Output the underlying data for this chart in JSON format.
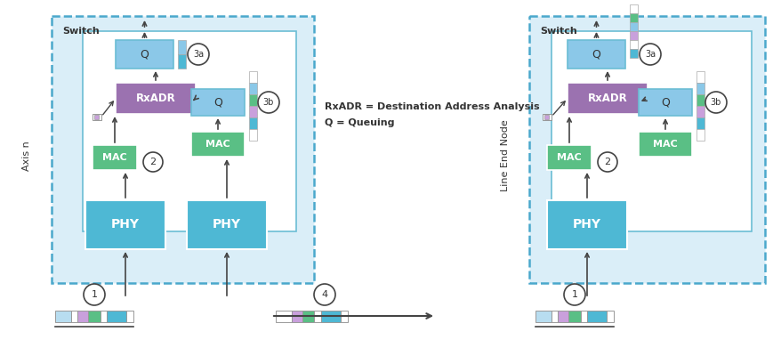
{
  "bg_color": "#ffffff",
  "light_blue_bg": "#daeef8",
  "switch_border": "#4aa8cc",
  "inner_box_border": "#6bbdd4",
  "phy_color": "#4eb8d4",
  "mac_color": "#5abf85",
  "rxadr_color": "#9b72b0",
  "q_box_color": "#8bc8e8",
  "arrow_color": "#444444",
  "text_color": "#222222",
  "dark_text": "#333333",
  "label_left": "Axis n",
  "label_right": "Line End Node",
  "switch_label": "Switch",
  "legend_line1": "RxADR = Destination Address Analysis",
  "legend_line2": "Q = Queuing",
  "dashed_border": "#4aa8cc",
  "frame_seg_colors_1": [
    "#b8ddf0",
    "#ffffff",
    "#c9a0dc",
    "#5abf85",
    "#ffffff",
    "#4eb8d4",
    "#ffffff"
  ],
  "frame_seg_colors_4": [
    "#ffffff",
    "#c9a0dc",
    "#5abf85",
    "#ffffff",
    "#4eb8d4",
    "#ffffff"
  ],
  "frame_seg_colors_r": [
    "#b8ddf0",
    "#ffffff",
    "#c9a0dc",
    "#5abf85",
    "#ffffff",
    "#4eb8d4",
    "#ffffff"
  ],
  "vbar_segs_3b": [
    "#ffffff",
    "#8bc8e8",
    "#5abf85",
    "#c9a0dc",
    "#4eb8d4",
    "#ffffff"
  ],
  "vbar_segs_3a_left": [
    "#8bc8e8",
    "#4eb8d4"
  ],
  "vbar_segs_3a_right": [
    "#ffffff",
    "#5abf85",
    "#8bc8e8",
    "#c9a0dc",
    "#ffffff",
    "#4eb8d4"
  ]
}
